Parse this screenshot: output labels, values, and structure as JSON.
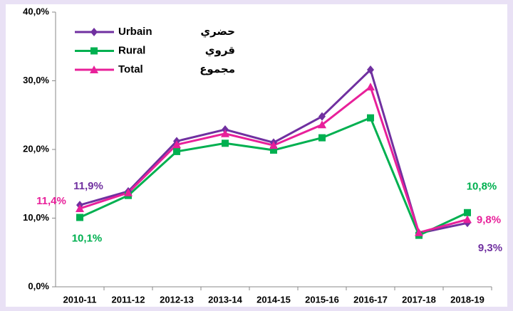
{
  "chart_data": {
    "type": "line",
    "categories": [
      "2010-11",
      "2011-12",
      "2012-13",
      "2013-14",
      "2014-15",
      "2015-16",
      "2016-17",
      "2017-18",
      "2018-19"
    ],
    "series": [
      {
        "name": "Urbain",
        "name_ar": "حضري",
        "color": "#7030a0",
        "marker": "diamond",
        "values": [
          11.9,
          13.9,
          21.2,
          22.9,
          21.0,
          24.8,
          31.6,
          7.8,
          9.3
        ],
        "value_labels": [
          "11,9%",
          null,
          null,
          null,
          null,
          null,
          null,
          null,
          "9,3%"
        ]
      },
      {
        "name": "Rural",
        "name_ar": "قروي",
        "color": "#00b050",
        "marker": "square",
        "values": [
          10.1,
          13.3,
          19.7,
          20.9,
          19.9,
          21.7,
          24.6,
          7.5,
          10.8
        ],
        "value_labels": [
          "10,1%",
          null,
          null,
          null,
          null,
          null,
          null,
          null,
          "10,8%"
        ]
      },
      {
        "name": "Total",
        "name_ar": "مجموع",
        "color": "#e8209a",
        "marker": "triangle",
        "values": [
          11.4,
          13.7,
          20.7,
          22.3,
          20.6,
          23.6,
          29.1,
          7.9,
          9.8
        ],
        "value_labels": [
          "11,4%",
          null,
          null,
          null,
          null,
          null,
          null,
          null,
          "9,8%"
        ]
      }
    ],
    "ylim": [
      0,
      40
    ],
    "yticks": [
      {
        "value": 0,
        "label": "0,0%"
      },
      {
        "value": 10,
        "label": "10,0%"
      },
      {
        "value": 20,
        "label": "20,0%"
      },
      {
        "value": 30,
        "label": "30,0%"
      },
      {
        "value": 40,
        "label": "40,0%"
      }
    ],
    "grid": false,
    "legend": "top-left"
  }
}
